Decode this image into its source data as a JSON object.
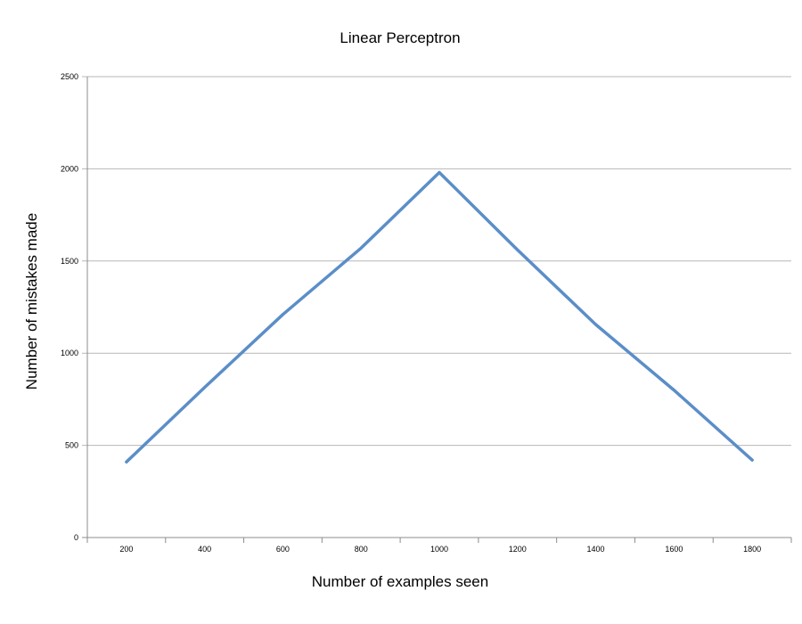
{
  "chart_data": {
    "type": "line",
    "title": "Linear Perceptron",
    "xlabel": "Number of examples seen",
    "ylabel": "Number of mistakes made",
    "x": [
      200,
      400,
      600,
      800,
      1000,
      1200,
      1400,
      1600,
      1800
    ],
    "categories": [
      "200",
      "400",
      "600",
      "800",
      "1000",
      "1200",
      "1400",
      "1600",
      "1800"
    ],
    "series": [
      {
        "values": [
          410,
          815,
          1210,
          1570,
          1980,
          1560,
          1155,
          800,
          420
        ],
        "color": "#5b8ec8"
      }
    ],
    "ylim": [
      0,
      2500
    ],
    "yticks": [
      0,
      500,
      1000,
      1500,
      2000,
      2500
    ],
    "ytick_labels": [
      "0",
      "500",
      "1000",
      "1500",
      "2000",
      "2500"
    ],
    "grid": true,
    "legend": "none"
  }
}
